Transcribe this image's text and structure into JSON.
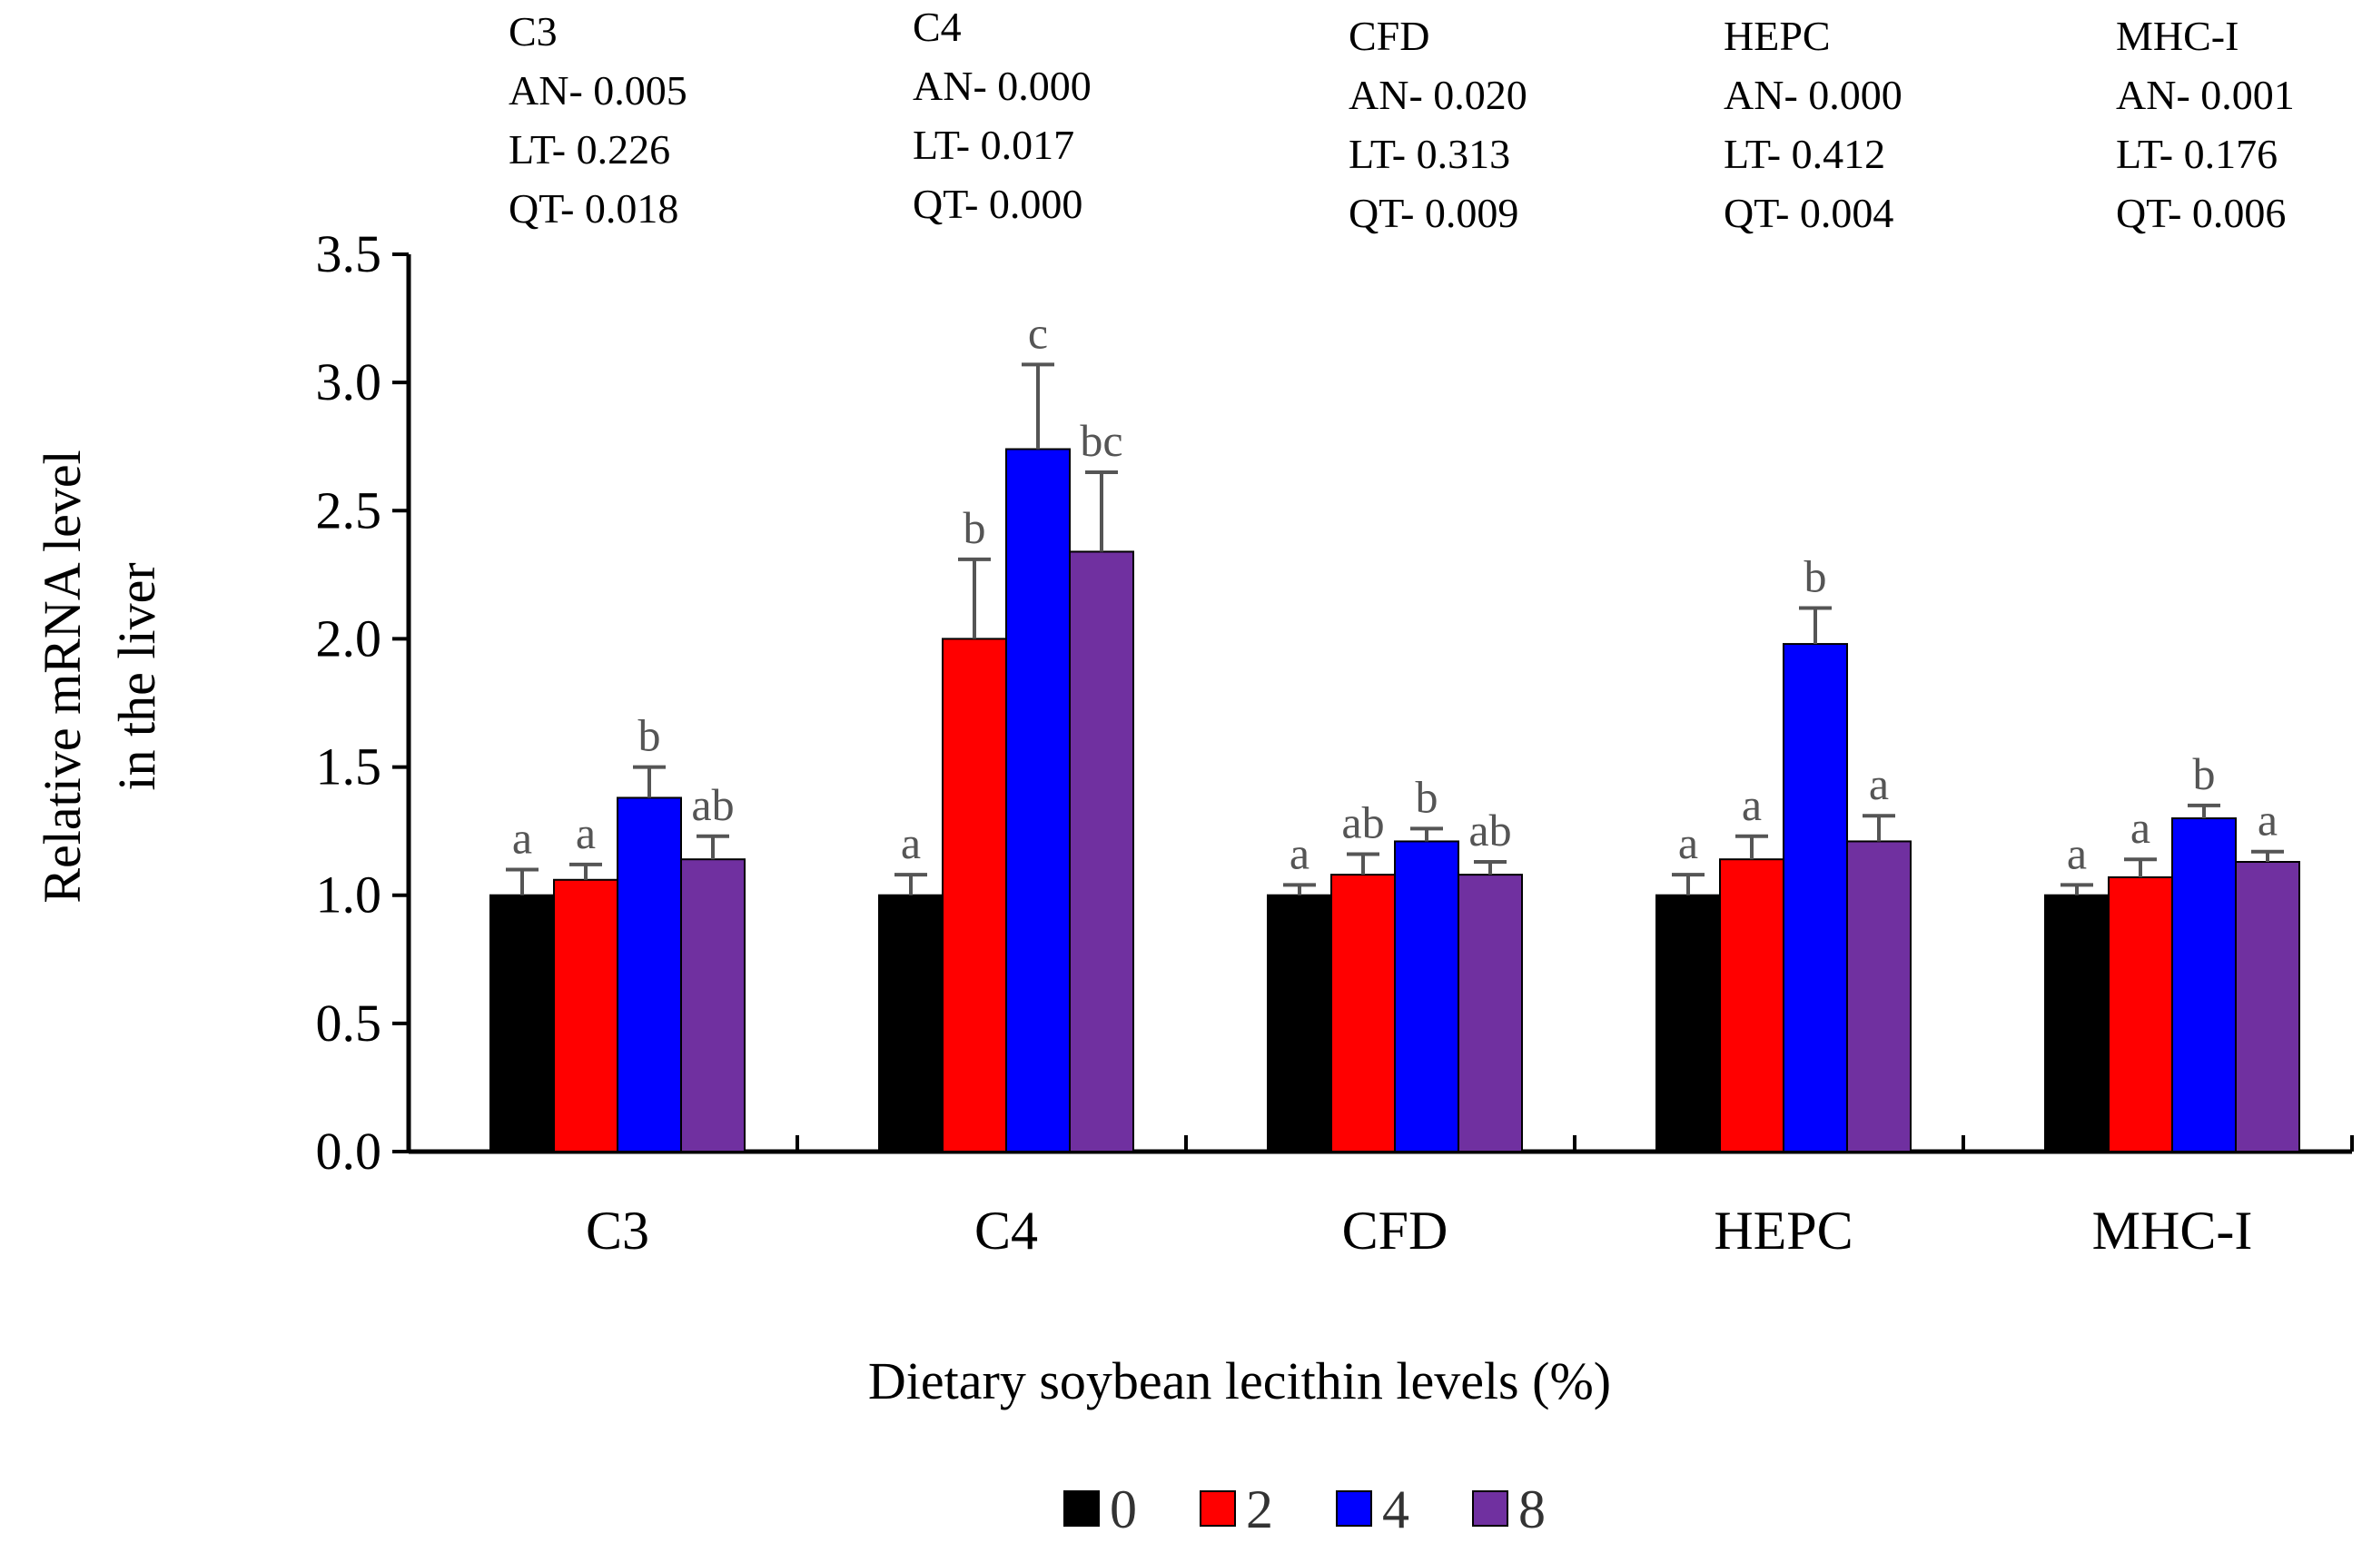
{
  "chart_data": {
    "type": "bar",
    "title": "",
    "xlabel": "Dietary soybean lecithin levels (%)",
    "ylabel_lines": [
      "Relative mRNA level",
      "in the liver"
    ],
    "ylim": [
      0,
      3.5
    ],
    "yticks": [
      "0.0",
      "0.5",
      "1.0",
      "1.5",
      "2.0",
      "2.5",
      "3.0",
      "3.5"
    ],
    "categories": [
      "C3",
      "C4",
      "CFD",
      "HEPC",
      "MHC-I"
    ],
    "series": [
      {
        "name": "0",
        "color": "#000000",
        "values": [
          1.0,
          1.0,
          1.0,
          1.0,
          1.0
        ],
        "errors": [
          0.1,
          0.08,
          0.04,
          0.08,
          0.04
        ],
        "letters": [
          "a",
          "a",
          "a",
          "a",
          "a"
        ]
      },
      {
        "name": "2",
        "color": "#ff0000",
        "values": [
          1.06,
          2.0,
          1.08,
          1.14,
          1.07
        ],
        "errors": [
          0.06,
          0.31,
          0.08,
          0.09,
          0.07
        ],
        "letters": [
          "a",
          "b",
          "ab",
          "a",
          "a"
        ]
      },
      {
        "name": "4",
        "color": "#0000ff",
        "values": [
          1.38,
          2.74,
          1.21,
          1.98,
          1.3
        ],
        "errors": [
          0.12,
          0.33,
          0.05,
          0.14,
          0.05
        ],
        "letters": [
          "b",
          "c",
          "b",
          "b",
          "b"
        ]
      },
      {
        "name": "8",
        "color": "#7030a0",
        "values": [
          1.14,
          2.34,
          1.08,
          1.21,
          1.13
        ],
        "errors": [
          0.09,
          0.31,
          0.05,
          0.1,
          0.04
        ],
        "letters": [
          "ab",
          "bc",
          "ab",
          "a",
          "a"
        ]
      }
    ],
    "legend_placement": "bottom-center",
    "stats": [
      {
        "gene": "C3",
        "lines": [
          "C3",
          "AN- 0.005",
          "LT- 0.226",
          "QT- 0.018"
        ]
      },
      {
        "gene": "C4",
        "lines": [
          "C4",
          "AN- 0.000",
          "LT- 0.017",
          "QT- 0.000"
        ]
      },
      {
        "gene": "CFD",
        "lines": [
          "CFD",
          "AN- 0.020",
          "LT- 0.313",
          "QT- 0.009"
        ]
      },
      {
        "gene": "HEPC",
        "lines": [
          "HEPC",
          "AN- 0.000",
          "LT- 0.412",
          "QT- 0.004"
        ]
      },
      {
        "gene": "MHC-I",
        "lines": [
          "MHC-I",
          "AN- 0.001",
          "LT- 0.176",
          "QT- 0.006"
        ]
      }
    ]
  },
  "colors": {
    "axis": "#000000",
    "error_bar": "#555555",
    "letters": "#555555",
    "text": "#000000"
  }
}
